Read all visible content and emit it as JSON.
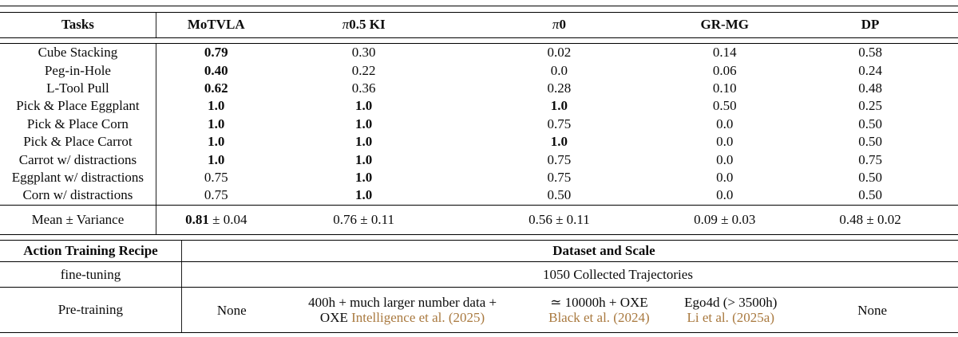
{
  "table": {
    "header": {
      "cells": [
        "Tasks",
        "MoTVLA",
        "π0.5 KI",
        "π0",
        "GR-MG",
        "DP"
      ]
    },
    "rows": [
      {
        "task": "Cube Stacking",
        "cells": [
          {
            "v": "0.79",
            "b": true
          },
          {
            "v": "0.30"
          },
          {
            "v": "0.02"
          },
          {
            "v": "0.14"
          },
          {
            "v": "0.58"
          }
        ]
      },
      {
        "task": "Peg-in-Hole",
        "cells": [
          {
            "v": "0.40",
            "b": true
          },
          {
            "v": "0.22"
          },
          {
            "v": "0.0"
          },
          {
            "v": "0.06"
          },
          {
            "v": "0.24"
          }
        ]
      },
      {
        "task": "L-Tool Pull",
        "cells": [
          {
            "v": "0.62",
            "b": true
          },
          {
            "v": "0.36"
          },
          {
            "v": "0.28"
          },
          {
            "v": "0.10"
          },
          {
            "v": "0.48"
          }
        ]
      },
      {
        "task": "Pick & Place Eggplant",
        "cells": [
          {
            "v": "1.0",
            "b": true
          },
          {
            "v": "1.0",
            "b": true
          },
          {
            "v": "1.0",
            "b": true
          },
          {
            "v": "0.50"
          },
          {
            "v": "0.25"
          }
        ]
      },
      {
        "task": "Pick & Place Corn",
        "cells": [
          {
            "v": "1.0",
            "b": true
          },
          {
            "v": "1.0",
            "b": true
          },
          {
            "v": "0.75"
          },
          {
            "v": "0.0"
          },
          {
            "v": "0.50"
          }
        ]
      },
      {
        "task": "Pick & Place Carrot",
        "cells": [
          {
            "v": "1.0",
            "b": true
          },
          {
            "v": "1.0",
            "b": true
          },
          {
            "v": "1.0",
            "b": true
          },
          {
            "v": "0.0"
          },
          {
            "v": "0.50"
          }
        ]
      },
      {
        "task": "Carrot w/ distractions",
        "cells": [
          {
            "v": "1.0",
            "b": true
          },
          {
            "v": "1.0",
            "b": true
          },
          {
            "v": "0.75"
          },
          {
            "v": "0.0"
          },
          {
            "v": "0.75"
          }
        ]
      },
      {
        "task": "Eggplant w/ distractions",
        "cells": [
          {
            "v": "0.75"
          },
          {
            "v": "1.0",
            "b": true
          },
          {
            "v": "0.75"
          },
          {
            "v": "0.0"
          },
          {
            "v": "0.50"
          }
        ]
      },
      {
        "task": "Corn w/ distractions",
        "cells": [
          {
            "v": "0.75"
          },
          {
            "v": "1.0",
            "b": true
          },
          {
            "v": "0.50"
          },
          {
            "v": "0.0"
          },
          {
            "v": "0.50"
          }
        ]
      }
    ],
    "mean_row": {
      "label": "Mean ± Variance",
      "cells": [
        {
          "bold": "0.81",
          "rest": " ± 0.04"
        },
        {
          "bold": "",
          "rest": "0.76 ± 0.11"
        },
        {
          "bold": "",
          "rest": "0.56 ± 0.11"
        },
        {
          "bold": "",
          "rest": "0.09 ± 0.03"
        },
        {
          "bold": "",
          "rest": "0.48 ± 0.02"
        }
      ]
    },
    "recipe": {
      "left_header": "Action Training Recipe",
      "right_header": "Dataset and Scale",
      "finetune_label": "fine-tuning",
      "finetune_value": "1050 Collected Trajectories",
      "pretrain_label": "Pre-training",
      "pretrain_cells": [
        {
          "lines": [
            [
              {
                "t": "None"
              }
            ]
          ]
        },
        {
          "lines": [
            [
              {
                "t": "400h + much larger number data +"
              }
            ],
            [
              {
                "t": "OXE "
              },
              {
                "t": "Intelligence et al. (2025)",
                "cite": true
              }
            ]
          ]
        },
        {
          "lines": [
            [
              {
                "t": "≃ 10000h + OXE"
              }
            ],
            [
              {
                "t": "Black et al. (2024)",
                "cite": true
              }
            ]
          ]
        },
        {
          "lines": [
            [
              {
                "t": "Ego4d (> 3500h)"
              }
            ],
            [
              {
                "t": "Li et al. (2025a)",
                "cite": true
              }
            ]
          ]
        },
        {
          "lines": [
            [
              {
                "t": "None"
              }
            ]
          ]
        }
      ]
    },
    "colors": {
      "citation": "#a9793f",
      "rule": "#000000",
      "text": "#0b0b0b"
    }
  }
}
